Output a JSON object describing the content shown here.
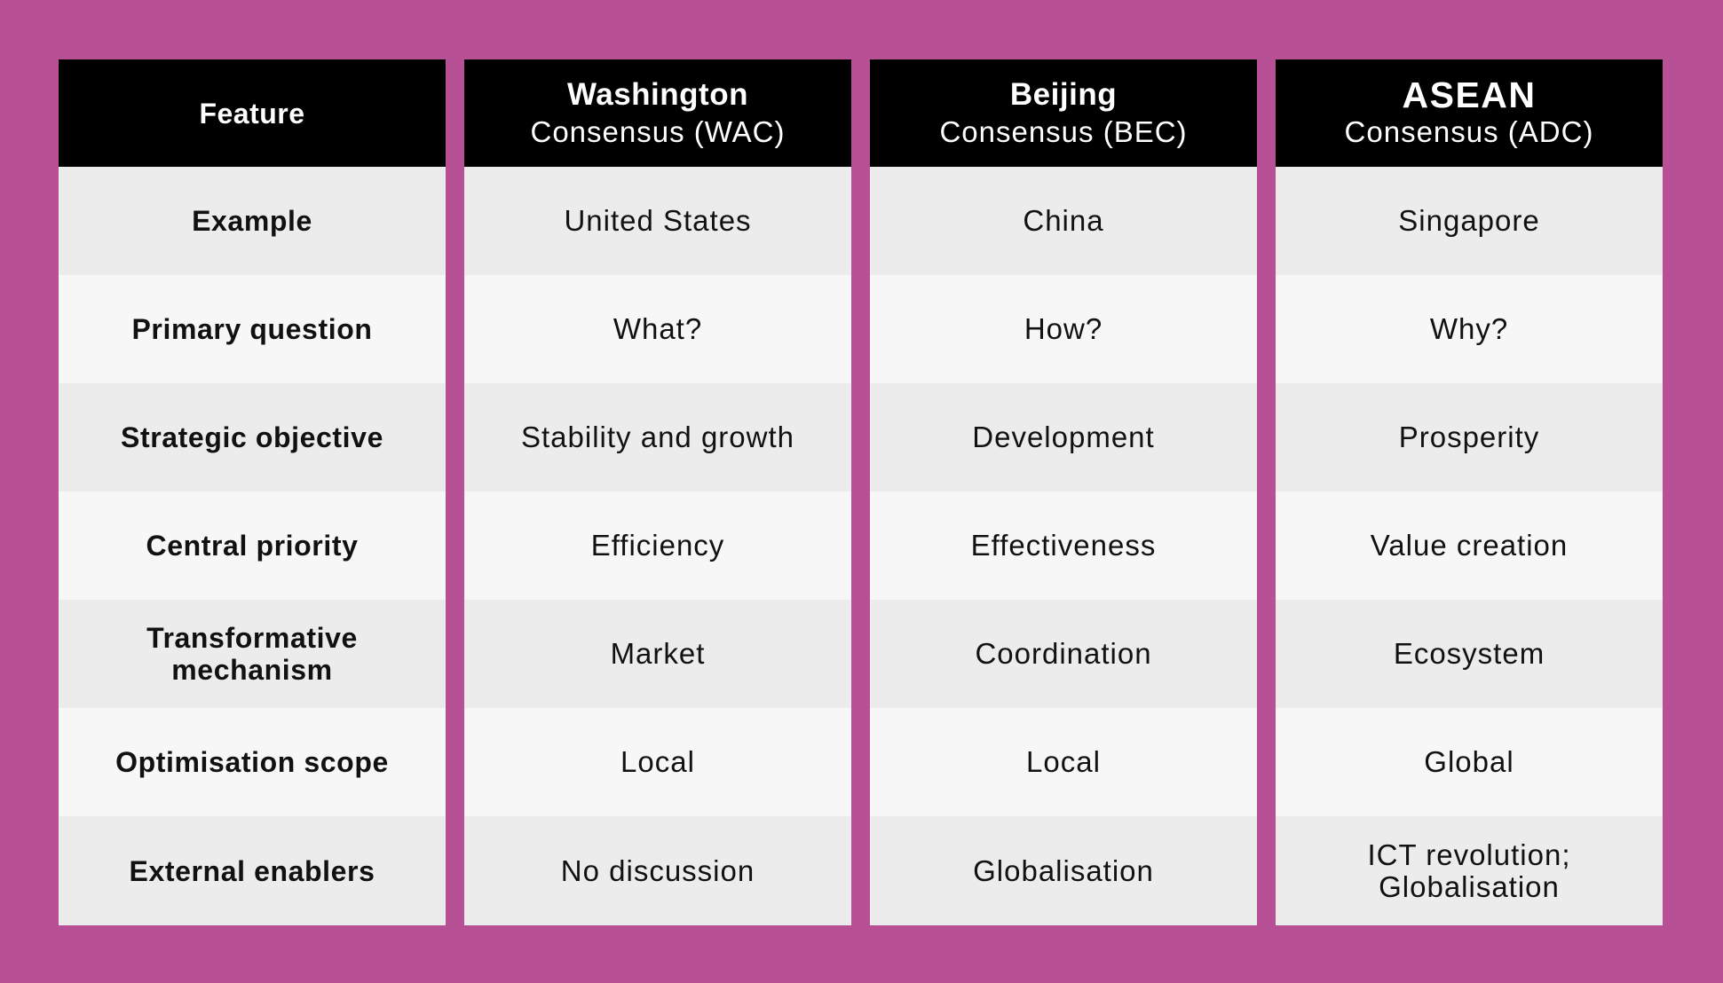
{
  "table": {
    "header": {
      "feature": "Feature",
      "wac": {
        "title": "Washington",
        "subtitle": "Consensus (WAC)"
      },
      "bec": {
        "title": "Beijing",
        "subtitle": "Consensus (BEC)"
      },
      "adc": {
        "title": "ASEAN",
        "subtitle": "Consensus (ADC)"
      }
    },
    "rows": [
      {
        "feature": "Example",
        "wac": "United States",
        "bec": "China",
        "adc": "Singapore"
      },
      {
        "feature": "Primary question",
        "wac": "What?",
        "bec": "How?",
        "adc": "Why?"
      },
      {
        "feature": "Strategic objective",
        "wac": "Stability and growth",
        "bec": "Development",
        "adc": "Prosperity"
      },
      {
        "feature": "Central priority",
        "wac": "Efficiency",
        "bec": "Effectiveness",
        "adc": "Value creation"
      },
      {
        "feature": "Transformative mechanism",
        "wac": "Market",
        "bec": "Coordination",
        "adc": "Ecosystem"
      },
      {
        "feature": "Optimisation scope",
        "wac": "Local",
        "bec": "Local",
        "adc": "Global"
      },
      {
        "feature": "External enablers",
        "wac": "No discussion",
        "bec": "Globalisation",
        "adc": "ICT revolution; Globalisation"
      }
    ]
  },
  "colors": {
    "background": "#b85096",
    "header_bg": "#000000",
    "header_text": "#ffffff",
    "row_odd": "#ececec",
    "row_even": "#f7f7f7"
  }
}
